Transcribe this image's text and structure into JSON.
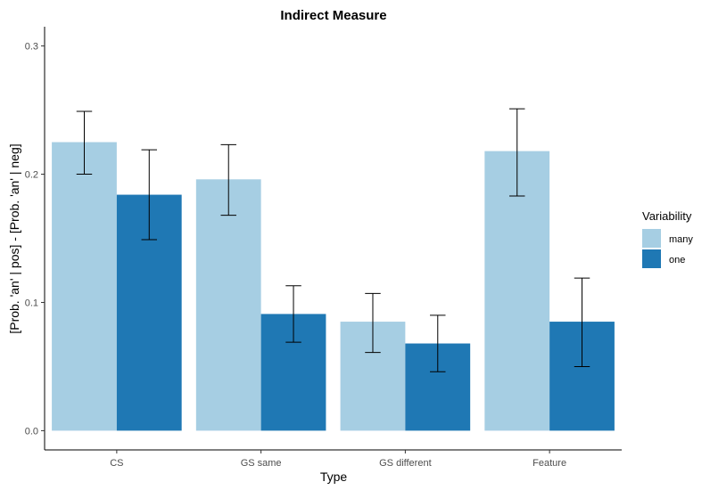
{
  "chart_data": {
    "type": "bar",
    "title": "Indirect Measure",
    "xlabel": "Type",
    "ylabel": "[Prob. 'an' | pos] - [Prob. 'an' | neg]",
    "categories": [
      "CS",
      "GS same",
      "GS different",
      "Feature"
    ],
    "ylim": [
      -0.015,
      0.315
    ],
    "yticks": [
      0.0,
      0.1,
      0.2,
      0.3
    ],
    "ytick_labels": [
      "0.0",
      "0.1",
      "0.2",
      "0.3"
    ],
    "grid": false,
    "legend": {
      "title": "Variability",
      "placement": "right"
    },
    "series": [
      {
        "name": "many",
        "color": "#a6cee3",
        "values": [
          0.225,
          0.196,
          0.085,
          0.218
        ],
        "err_low": [
          0.2,
          0.168,
          0.061,
          0.183
        ],
        "err_high": [
          0.249,
          0.223,
          0.107,
          0.251
        ]
      },
      {
        "name": "one",
        "color": "#1f78b4",
        "values": [
          0.184,
          0.091,
          0.068,
          0.085
        ],
        "err_low": [
          0.149,
          0.069,
          0.046,
          0.05
        ],
        "err_high": [
          0.219,
          0.113,
          0.09,
          0.119
        ]
      }
    ]
  }
}
